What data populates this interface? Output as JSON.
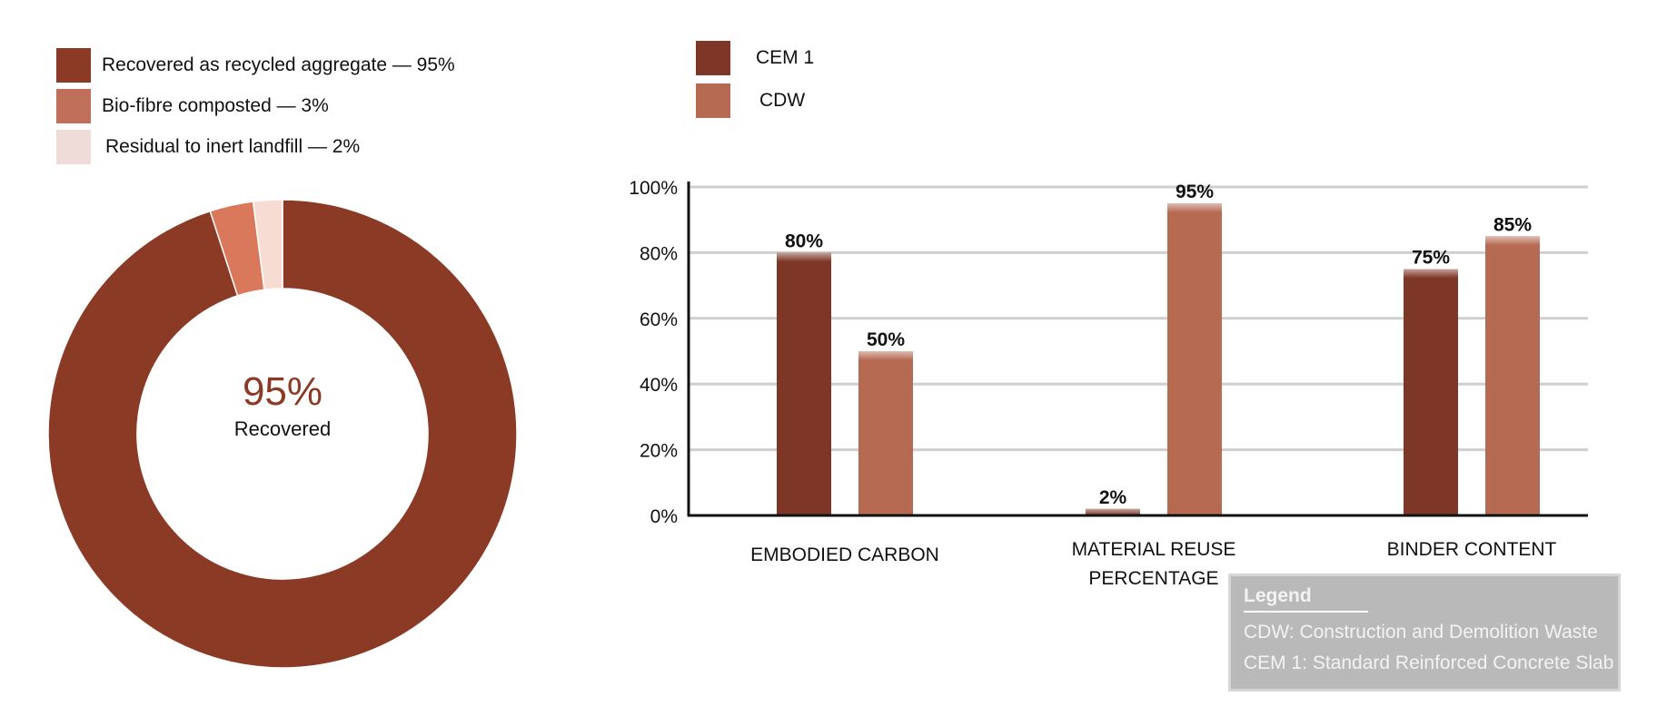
{
  "pie_legend": [
    {
      "label": "Recovered as recycled aggregate — 95%",
      "color": "#8b3a26"
    },
    {
      "label": "Bio-fibre composted — 3%",
      "color": "#c0705a"
    },
    {
      "label": "Residual to inert landfill — 2%",
      "color": "#efdcd8"
    }
  ],
  "bar_legend": [
    {
      "label": "CEM 1",
      "color": "#7e3626"
    },
    {
      "label": "CDW",
      "color": "#b66a52"
    }
  ],
  "note": {
    "title": "Legend",
    "lines": [
      "CDW: Construction and Demolition Waste",
      "CEM 1: Standard Reinforced Concrete Slab"
    ]
  },
  "chart_data": [
    {
      "type": "pie",
      "style": "donut",
      "labels": [
        "Recovered as recycled aggregate",
        "Bio-fibre composted",
        "Residual to inert landfill"
      ],
      "values": [
        95,
        3,
        2
      ],
      "colors": [
        "#8b3a26",
        "#d9785a",
        "#f7dcd3"
      ],
      "center_value": "95%",
      "center_label": "Recovered"
    },
    {
      "type": "bar",
      "categories": [
        "EMBODIED CARBON",
        "MATERIAL REUSE PERCENTAGE",
        "BINDER CONTENT"
      ],
      "series": [
        {
          "name": "CEM 1",
          "values": [
            80,
            2,
            75
          ],
          "labels": [
            "80%",
            "2%",
            "75%"
          ],
          "color": "#7e3626"
        },
        {
          "name": "CDW",
          "values": [
            50,
            95,
            85
          ],
          "labels": [
            "50%",
            "95%",
            "85%"
          ],
          "color": "#b66a52"
        }
      ],
      "ylim": [
        0,
        100
      ],
      "yticks": [
        "0%",
        "20%",
        "40%",
        "60%",
        "80%",
        "100%"
      ],
      "grid": true
    }
  ]
}
